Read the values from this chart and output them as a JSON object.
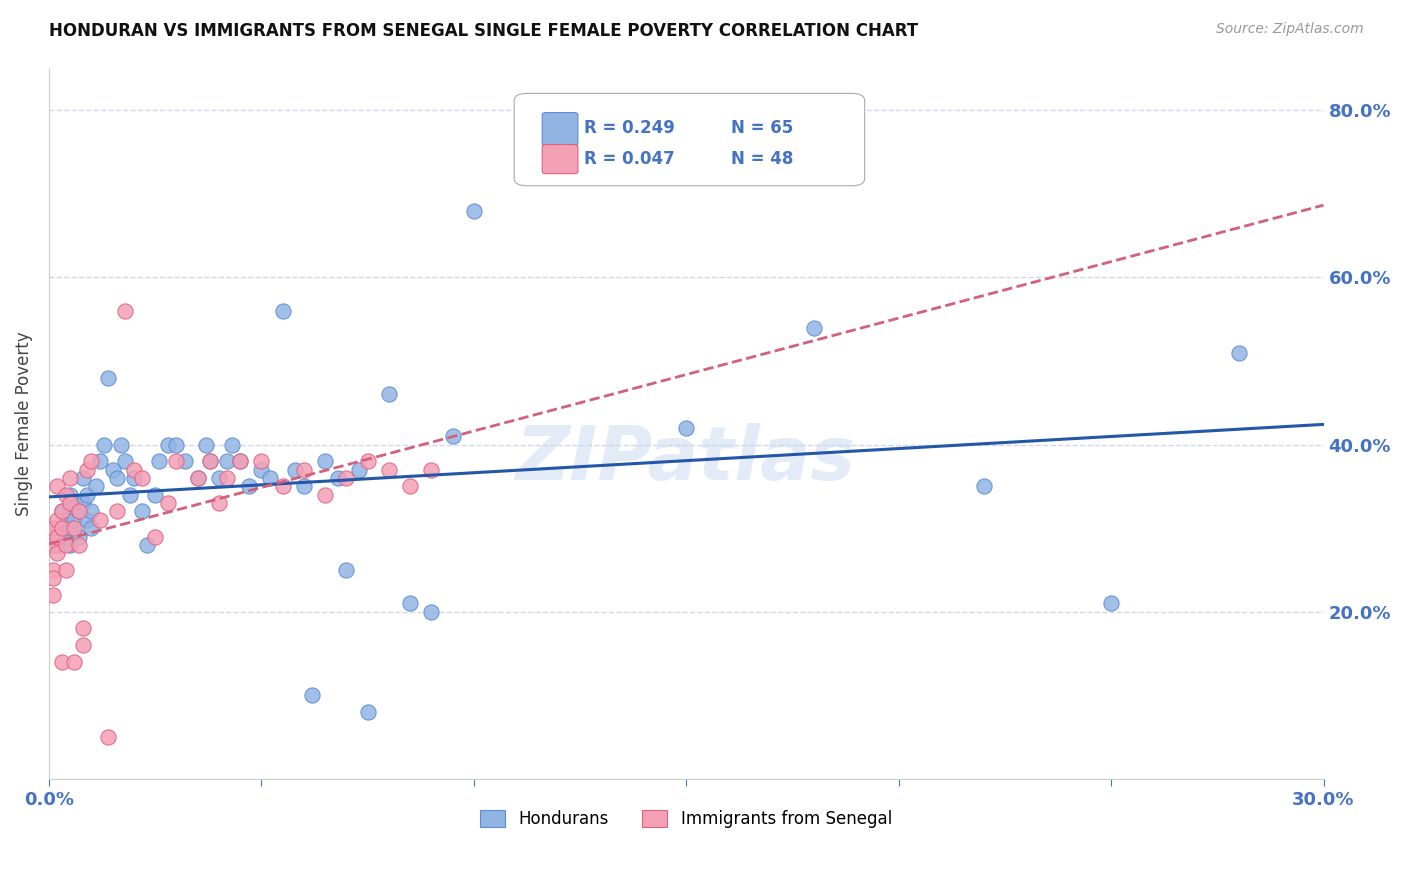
{
  "title": "HONDURAN VS IMMIGRANTS FROM SENEGAL SINGLE FEMALE POVERTY CORRELATION CHART",
  "source": "Source: ZipAtlas.com",
  "ylabel_label": "Single Female Poverty",
  "x_min": 0.0,
  "x_max": 0.3,
  "y_min": 0.0,
  "y_max": 0.85,
  "x_ticks": [
    0.0,
    0.05,
    0.1,
    0.15,
    0.2,
    0.25,
    0.3
  ],
  "y_ticks": [
    0.0,
    0.2,
    0.4,
    0.6,
    0.8
  ],
  "honduran_color": "#92b4e3",
  "senegal_color": "#f4a0b5",
  "honduran_edge": "#5b8dd4",
  "senegal_edge": "#e06080",
  "line_honduran_color": "#2457a8",
  "line_senegal_color": "#d4607a",
  "watermark": "ZIPatlas",
  "legend_R_honduran": "R = 0.249",
  "legend_N_honduran": "N = 65",
  "legend_R_senegal": "R = 0.047",
  "legend_N_senegal": "N = 48",
  "honduran_x": [
    0.001,
    0.002,
    0.003,
    0.003,
    0.004,
    0.004,
    0.005,
    0.005,
    0.005,
    0.006,
    0.006,
    0.007,
    0.007,
    0.008,
    0.008,
    0.009,
    0.009,
    0.01,
    0.01,
    0.011,
    0.012,
    0.013,
    0.014,
    0.015,
    0.016,
    0.017,
    0.018,
    0.019,
    0.02,
    0.022,
    0.023,
    0.025,
    0.026,
    0.028,
    0.03,
    0.032,
    0.035,
    0.037,
    0.038,
    0.04,
    0.042,
    0.043,
    0.045,
    0.047,
    0.05,
    0.052,
    0.055,
    0.058,
    0.06,
    0.062,
    0.065,
    0.068,
    0.07,
    0.073,
    0.075,
    0.08,
    0.085,
    0.09,
    0.095,
    0.1,
    0.15,
    0.18,
    0.22,
    0.25,
    0.28
  ],
  "honduran_y": [
    0.3,
    0.28,
    0.3,
    0.32,
    0.31,
    0.29,
    0.3,
    0.28,
    0.34,
    0.31,
    0.33,
    0.29,
    0.32,
    0.33,
    0.36,
    0.34,
    0.31,
    0.32,
    0.3,
    0.35,
    0.38,
    0.4,
    0.48,
    0.37,
    0.36,
    0.4,
    0.38,
    0.34,
    0.36,
    0.32,
    0.28,
    0.34,
    0.38,
    0.4,
    0.4,
    0.38,
    0.36,
    0.4,
    0.38,
    0.36,
    0.38,
    0.4,
    0.38,
    0.35,
    0.37,
    0.36,
    0.56,
    0.37,
    0.35,
    0.1,
    0.38,
    0.36,
    0.25,
    0.37,
    0.08,
    0.46,
    0.21,
    0.2,
    0.41,
    0.68,
    0.42,
    0.54,
    0.35,
    0.21,
    0.51
  ],
  "senegal_x": [
    0.001,
    0.001,
    0.001,
    0.001,
    0.001,
    0.002,
    0.002,
    0.002,
    0.002,
    0.003,
    0.003,
    0.003,
    0.004,
    0.004,
    0.004,
    0.005,
    0.005,
    0.006,
    0.006,
    0.007,
    0.007,
    0.008,
    0.008,
    0.009,
    0.01,
    0.012,
    0.014,
    0.016,
    0.018,
    0.02,
    0.022,
    0.025,
    0.028,
    0.03,
    0.035,
    0.038,
    0.04,
    0.042,
    0.045,
    0.05,
    0.055,
    0.06,
    0.065,
    0.07,
    0.075,
    0.08,
    0.085,
    0.09
  ],
  "senegal_y": [
    0.3,
    0.28,
    0.25,
    0.24,
    0.22,
    0.31,
    0.29,
    0.27,
    0.35,
    0.32,
    0.3,
    0.14,
    0.34,
    0.28,
    0.25,
    0.36,
    0.33,
    0.3,
    0.14,
    0.32,
    0.28,
    0.18,
    0.16,
    0.37,
    0.38,
    0.31,
    0.05,
    0.32,
    0.56,
    0.37,
    0.36,
    0.29,
    0.33,
    0.38,
    0.36,
    0.38,
    0.33,
    0.36,
    0.38,
    0.38,
    0.35,
    0.37,
    0.34,
    0.36,
    0.38,
    0.37,
    0.35,
    0.37
  ],
  "grid_color": "#d0d8e8",
  "background_color": "#ffffff",
  "axis_color": "#4472c4",
  "tick_color": "#4472c4"
}
